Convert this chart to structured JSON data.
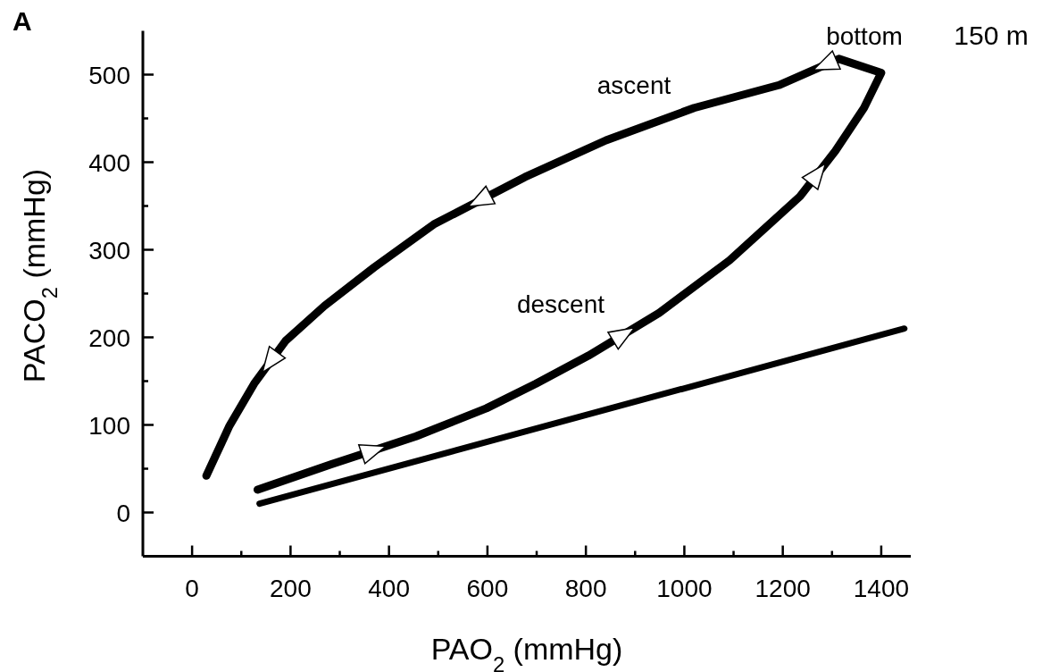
{
  "chart_data": {
    "type": "line",
    "title": "A",
    "xlabel": "PAO$_{2}$ (mmHg)",
    "ylabel": "PACO$_{2}$ (mmHg)",
    "xlim": [
      -100,
      1460
    ],
    "ylim": [
      -50,
      550
    ],
    "xticks": [
      0,
      {
        "value": 100,
        "label": null
      },
      200,
      {
        "value": 300,
        "label": null
      },
      400,
      {
        "value": 500,
        "label": null
      },
      600,
      {
        "value": 700,
        "label": null
      },
      800,
      {
        "value": 900,
        "label": null
      },
      1000,
      {
        "value": 1100,
        "label": null
      },
      1200,
      {
        "value": 1300,
        "label": null
      },
      1400
    ],
    "yticks": [
      0,
      {
        "value": 50,
        "label": null
      },
      100,
      {
        "value": 150,
        "label": null
      },
      200,
      {
        "value": 250,
        "label": null
      },
      300,
      {
        "value": 350,
        "label": null
      },
      400,
      {
        "value": 450,
        "label": null
      },
      500
    ],
    "grid": false,
    "series": [
      {
        "color": "#000000",
        "x": [
          133,
          283,
          455,
          598,
          698,
          805,
          949,
          1092,
          1235,
          1307,
          1365,
          1400,
          1314,
          1257,
          1192,
          1020,
          841,
          676,
          491,
          370,
          269,
          190,
          126,
          76,
          29
        ],
        "values": [
          26,
          55,
          87,
          119,
          147,
          179,
          228,
          288,
          361,
          413,
          462,
          502,
          518,
          504,
          488,
          462,
          425,
          383,
          329,
          280,
          236,
          196,
          147,
          99,
          42
        ]
      },
      {
        "color": "#000000",
        "x": [
          137,
          1447
        ],
        "values": [
          10,
          210
        ]
      }
    ],
    "annotations": [
      "ascent",
      "descent",
      "bottom",
      "150 m"
    ]
  }
}
